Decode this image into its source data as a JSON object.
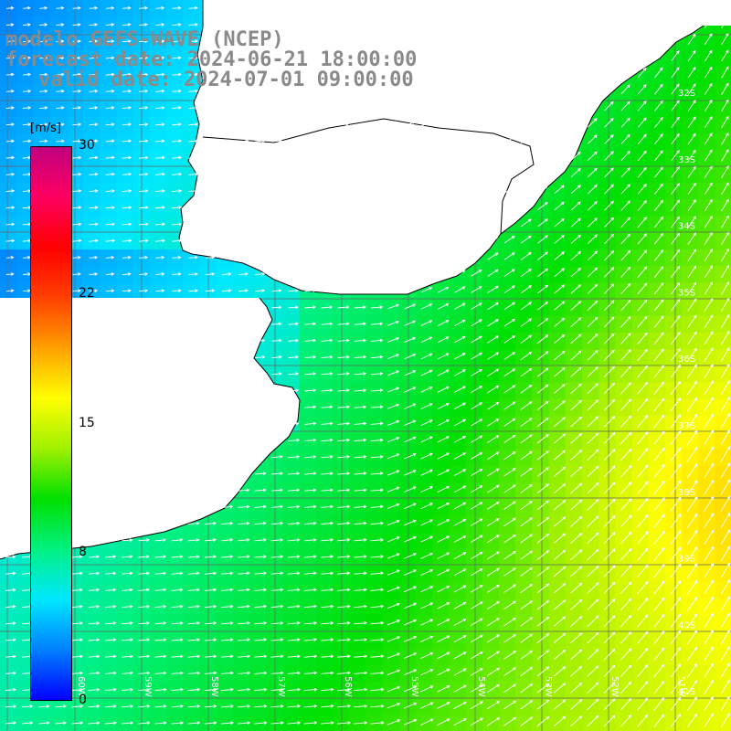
{
  "title": {
    "line1": "modelo GEFS-WAVE (NCEP)",
    "line2": "forecast date: 2024-06-21 18:00:00",
    "line3": "valid date: 2024-07-01 09:00:00"
  },
  "colorbar": {
    "unit": "[m/s]",
    "ticks": [
      "30",
      "22",
      "15",
      "8",
      "0"
    ],
    "tick_values": [
      30,
      22,
      15,
      8,
      0
    ],
    "range": [
      0,
      30
    ],
    "colors": [
      "#0000ff",
      "#0080ff",
      "#00e8ff",
      "#00f080",
      "#00e000",
      "#a0f000",
      "#ffff00",
      "#ffa000",
      "#ff4000",
      "#ff0000",
      "#ff0060",
      "#c00080"
    ]
  },
  "map": {
    "lat_labels": [
      "32S",
      "33S",
      "34S",
      "35S",
      "36S",
      "37S",
      "38S",
      "39S",
      "40S",
      "41S"
    ],
    "lon_labels": [
      "60W",
      "59W",
      "58W",
      "57W",
      "56W",
      "55W",
      "54W",
      "53W",
      "52W",
      "51W"
    ],
    "land_color": "#ffffff",
    "vector_color": "#ffffff"
  }
}
